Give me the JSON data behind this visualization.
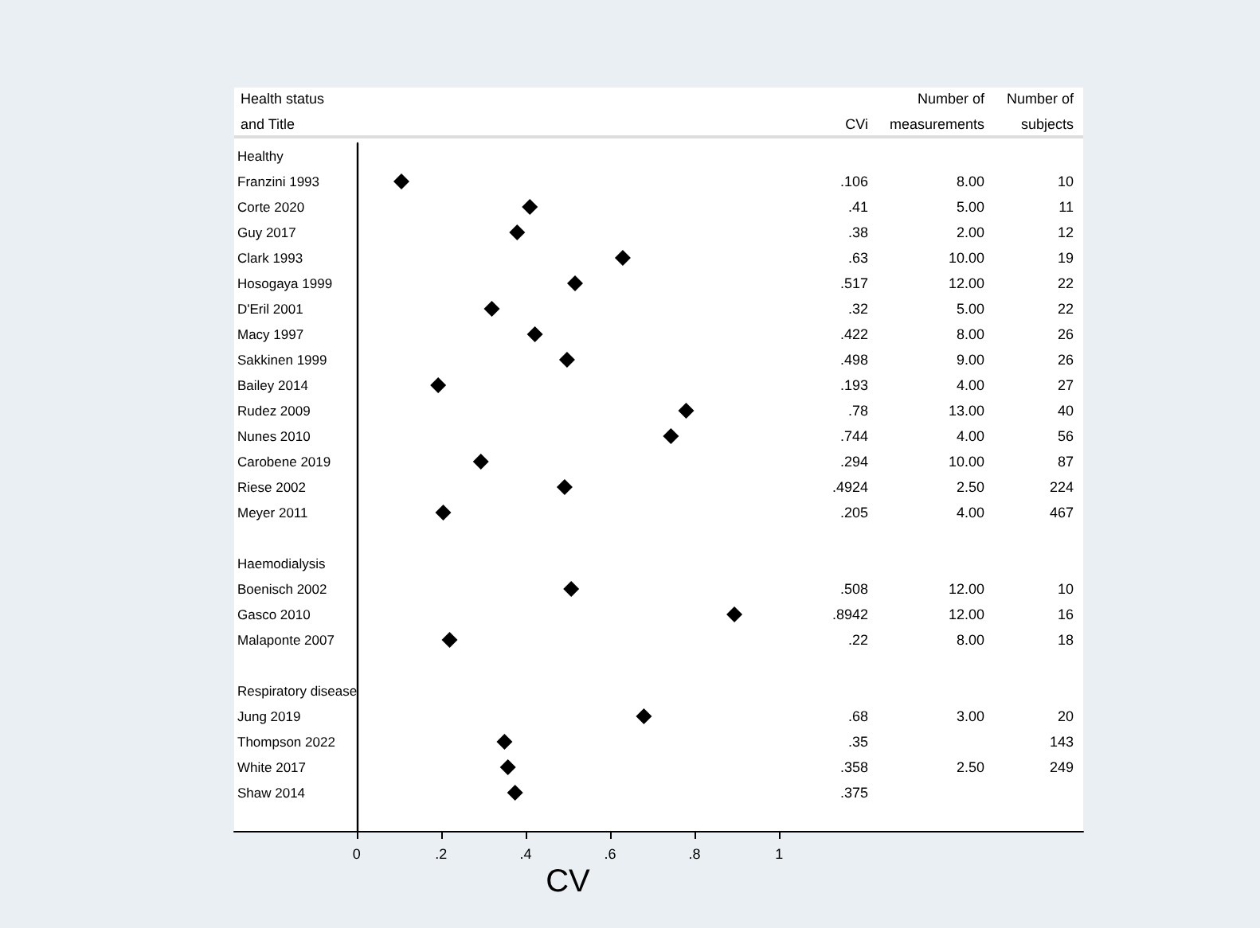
{
  "chart_data": {
    "type": "scatter",
    "ylabel": "Health status\nand Title",
    "xlabel": "CV",
    "categories": [
      "Healthy",
      "Franzini 1993",
      "Corte 2020",
      "Guy 2017",
      "Clark 1993",
      "Hosogaya 1999",
      "D'Eril 2001",
      "Macy 1997",
      "Sakkinen 1999",
      "Bailey 2014",
      "Rudez 2009",
      "Nunes 2010",
      "Carobene 2019",
      "Riese 2002",
      "Meyer 2011",
      null,
      "Haemodialysis",
      "Boenisch 2002",
      "Gasco 2010",
      "Malaponte 2007",
      null,
      "Respiratory disease",
      "Jung 2019",
      "Thompson 2022",
      "White 2017",
      "Shaw 2014",
      null
    ],
    "values": [
      null,
      0.106,
      0.41,
      0.38,
      0.63,
      0.517,
      0.32,
      0.422,
      0.498,
      0.193,
      0.78,
      0.744,
      0.294,
      0.4924,
      0.205,
      null,
      null,
      0.508,
      0.8942,
      0.22,
      null,
      null,
      0.68,
      0.35,
      0.358,
      0.375,
      null
    ],
    "color": "#000000",
    "marker": "diamond",
    "orientation": "horizontal",
    "xlim": [
      -0.29,
      1.72
    ],
    "xticks": [
      0,
      {
        "value": 0.2,
        "label": ".2"
      },
      {
        "value": 0.4,
        "label": ".4"
      },
      {
        "value": 0.6,
        "label": ".6"
      },
      {
        "value": 0.8,
        "label": ".8"
      },
      1
    ],
    "annotations": [
      "CVi",
      ".106\n.41\n.38\n.63\n.517\n.32\n.422\n.498\n.193\n.78\n.744\n.294\n.4924\n.205\n\n\n.508\n.8942\n.22\n\n\n.68\n.35\n.358\n.375",
      "Number of\nmeasurements",
      "8.00\n5.00\n2.00\n10.00\n12.00\n5.00\n8.00\n9.00\n4.00\n13.00\n4.00\n10.00\n2.50\n4.00\n\n\n12.00\n12.00\n8.00\n\n\n3.00\n\n2.50",
      "Number of\nsubjects",
      "10\n11\n12\n19\n22\n22\n26\n26\n27\n40\n56\n87\n224\n467\n\n\n10\n16\n18\n\n\n20\n143\n249"
    ]
  }
}
